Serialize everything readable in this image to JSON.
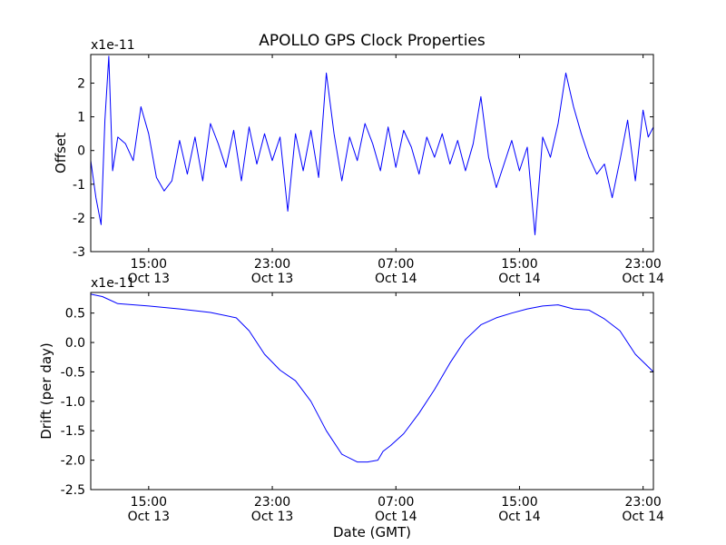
{
  "chart_data": [
    {
      "type": "line",
      "title": "APOLLO GPS Clock Properties",
      "ylabel": "Offset",
      "xlabel": "",
      "exponent_label": "x1e-11",
      "color": "#0000ff",
      "x_domain": [
        "Oct 13 11:15",
        "Oct 14 23:40"
      ],
      "x_ticks": [
        {
          "time": "15:00",
          "date": "Oct 13"
        },
        {
          "time": "23:00",
          "date": "Oct 13"
        },
        {
          "time": "07:00",
          "date": "Oct 14"
        },
        {
          "time": "15:00",
          "date": "Oct 14"
        },
        {
          "time": "23:00",
          "date": "Oct 14"
        }
      ],
      "ylim": [
        -3,
        2.85
      ],
      "y_ticks": [
        {
          "value": 2,
          "label": "2"
        },
        {
          "value": 1,
          "label": "1"
        },
        {
          "value": 0,
          "label": "0"
        },
        {
          "value": -1,
          "label": "-1"
        },
        {
          "value": -2,
          "label": "-2"
        },
        {
          "value": -3,
          "label": "-3"
        }
      ],
      "series": [
        {
          "x": [
            "Oct 13 11:15",
            "Oct 13 11:35",
            "Oct 13 11:55",
            "Oct 13 12:10",
            "Oct 13 12:25",
            "Oct 13 12:40",
            "Oct 13 13:00",
            "Oct 13 13:30",
            "Oct 13 14:00",
            "Oct 13 14:30",
            "Oct 13 15:00",
            "Oct 13 15:30",
            "Oct 13 16:00",
            "Oct 13 16:30",
            "Oct 13 17:00",
            "Oct 13 17:30",
            "Oct 13 18:00",
            "Oct 13 18:30",
            "Oct 13 19:00",
            "Oct 13 19:30",
            "Oct 13 20:00",
            "Oct 13 20:30",
            "Oct 13 21:00",
            "Oct 13 21:30",
            "Oct 13 22:00",
            "Oct 13 22:30",
            "Oct 13 23:00",
            "Oct 13 23:30",
            "Oct 14 00:00",
            "Oct 14 00:30",
            "Oct 14 01:00",
            "Oct 14 01:30",
            "Oct 14 02:00",
            "Oct 14 02:30",
            "Oct 14 03:00",
            "Oct 14 03:30",
            "Oct 14 04:00",
            "Oct 14 04:30",
            "Oct 14 05:00",
            "Oct 14 05:30",
            "Oct 14 06:00",
            "Oct 14 06:30",
            "Oct 14 07:00",
            "Oct 14 07:30",
            "Oct 14 08:00",
            "Oct 14 08:30",
            "Oct 14 09:00",
            "Oct 14 09:30",
            "Oct 14 10:00",
            "Oct 14 10:30",
            "Oct 14 11:00",
            "Oct 14 11:30",
            "Oct 14 12:00",
            "Oct 14 12:30",
            "Oct 14 13:00",
            "Oct 14 13:30",
            "Oct 14 14:00",
            "Oct 14 14:30",
            "Oct 14 15:00",
            "Oct 14 15:30",
            "Oct 14 16:00",
            "Oct 14 16:30",
            "Oct 14 17:00",
            "Oct 14 17:30",
            "Oct 14 18:00",
            "Oct 14 18:30",
            "Oct 14 19:00",
            "Oct 14 19:30",
            "Oct 14 20:00",
            "Oct 14 20:30",
            "Oct 14 21:00",
            "Oct 14 21:30",
            "Oct 14 22:00",
            "Oct 14 22:30",
            "Oct 14 23:00",
            "Oct 14 23:20",
            "Oct 14 23:40"
          ],
          "y": [
            -0.3,
            -1.4,
            -2.2,
            0.9,
            2.8,
            -0.6,
            0.4,
            0.2,
            -0.3,
            1.3,
            0.5,
            -0.8,
            -1.2,
            -0.9,
            0.3,
            -0.7,
            0.4,
            -0.9,
            0.8,
            0.2,
            -0.5,
            0.6,
            -0.9,
            0.7,
            -0.4,
            0.5,
            -0.3,
            0.4,
            -1.8,
            0.5,
            -0.6,
            0.6,
            -0.8,
            2.3,
            0.5,
            -0.9,
            0.4,
            -0.3,
            0.8,
            0.2,
            -0.6,
            0.7,
            -0.5,
            0.6,
            0.1,
            -0.7,
            0.4,
            -0.2,
            0.5,
            -0.4,
            0.3,
            -0.6,
            0.2,
            1.6,
            -0.2,
            -1.1,
            -0.4,
            0.3,
            -0.6,
            0.1,
            -2.5,
            0.4,
            -0.2,
            0.8,
            2.3,
            1.3,
            0.5,
            -0.2,
            -0.7,
            -0.4,
            -1.4,
            -0.3,
            0.9,
            -0.9,
            1.2,
            0.4,
            0.7
          ]
        }
      ]
    },
    {
      "type": "line",
      "title": "",
      "xlabel": "Date (GMT)",
      "ylabel": "Drift (per day)",
      "exponent_label": "x1e-11",
      "color": "#0000ff",
      "x_domain": [
        "Oct 13 11:15",
        "Oct 14 23:40"
      ],
      "x_ticks": [
        {
          "time": "15:00",
          "date": "Oct 13"
        },
        {
          "time": "23:00",
          "date": "Oct 13"
        },
        {
          "time": "07:00",
          "date": "Oct 14"
        },
        {
          "time": "15:00",
          "date": "Oct 14"
        },
        {
          "time": "23:00",
          "date": "Oct 14"
        }
      ],
      "ylim": [
        -2.5,
        0.85
      ],
      "y_ticks": [
        {
          "value": 0.5,
          "label": "0.5"
        },
        {
          "value": 0.0,
          "label": "0.0"
        },
        {
          "value": -0.5,
          "label": "-0.5"
        },
        {
          "value": -1.0,
          "label": "-1.0"
        },
        {
          "value": -1.5,
          "label": "-1.5"
        },
        {
          "value": -2.0,
          "label": "-2.0"
        },
        {
          "value": -2.5,
          "label": "-2.5"
        }
      ],
      "series": [
        {
          "x": [
            "Oct 13 11:15",
            "Oct 13 12:00",
            "Oct 13 13:00",
            "Oct 13 15:00",
            "Oct 13 17:00",
            "Oct 13 19:00",
            "Oct 13 20:40",
            "Oct 13 21:30",
            "Oct 13 22:30",
            "Oct 13 23:30",
            "Oct 14 00:30",
            "Oct 14 01:30",
            "Oct 14 02:30",
            "Oct 14 03:30",
            "Oct 14 04:30",
            "Oct 14 05:10",
            "Oct 14 05:50",
            "Oct 14 06:10",
            "Oct 14 06:40",
            "Oct 14 07:30",
            "Oct 14 08:30",
            "Oct 14 09:30",
            "Oct 14 10:30",
            "Oct 14 11:30",
            "Oct 14 12:30",
            "Oct 14 13:30",
            "Oct 14 14:30",
            "Oct 14 15:30",
            "Oct 14 16:30",
            "Oct 14 17:30",
            "Oct 14 18:30",
            "Oct 14 19:30",
            "Oct 14 20:30",
            "Oct 14 21:30",
            "Oct 14 22:30",
            "Oct 14 23:40"
          ],
          "y": [
            0.82,
            0.78,
            0.66,
            0.62,
            0.57,
            0.51,
            0.42,
            0.2,
            -0.2,
            -0.47,
            -0.65,
            -1.0,
            -1.5,
            -1.9,
            -2.03,
            -2.03,
            -2.0,
            -1.85,
            -1.75,
            -1.55,
            -1.2,
            -0.8,
            -0.35,
            0.05,
            0.3,
            0.42,
            0.5,
            0.57,
            0.62,
            0.64,
            0.57,
            0.55,
            0.4,
            0.2,
            -0.2,
            -0.5
          ]
        }
      ]
    }
  ]
}
